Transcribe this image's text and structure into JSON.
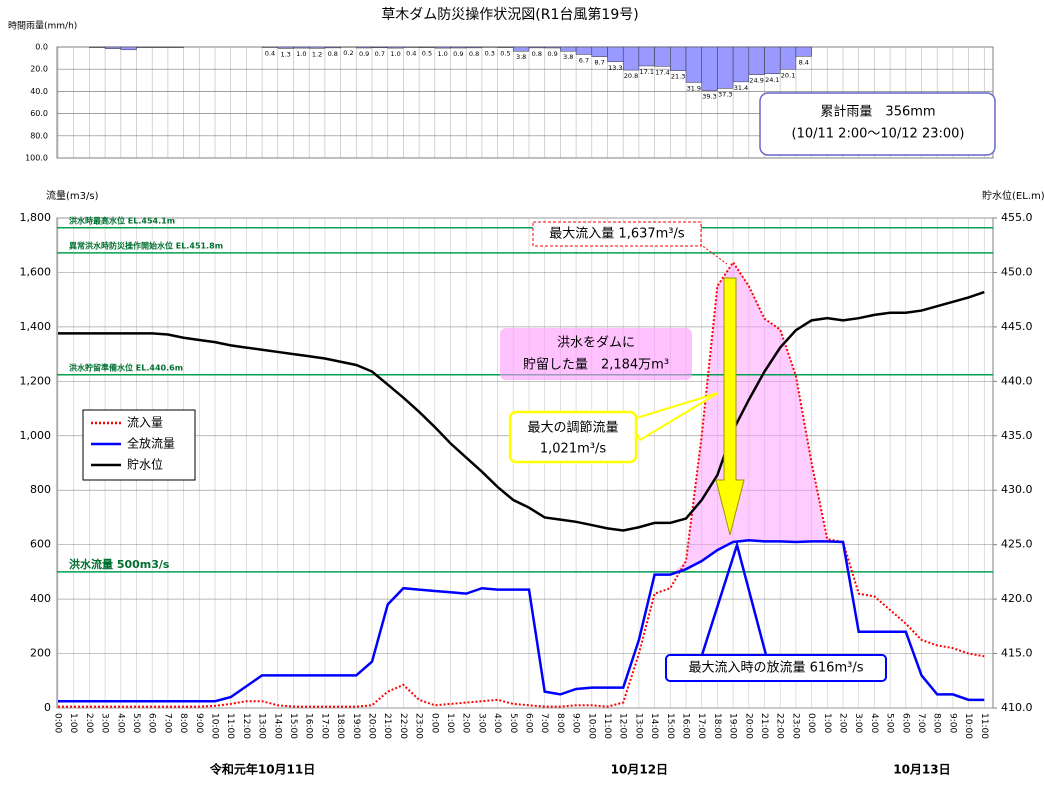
{
  "chart_data": [
    {
      "type": "bar",
      "title": "草木ダム防災操作状況図(R1台風第19号)",
      "ylabel": "時間雨量(mm/h)",
      "inverted": true,
      "grid": true,
      "color": "#9999ff",
      "ylim": [
        0,
        100
      ],
      "yticks": [
        {
          "value": 0,
          "label": "0.0"
        },
        {
          "value": 20,
          "label": "20.0"
        },
        {
          "value": 40,
          "label": "40.0"
        },
        {
          "value": 60,
          "label": "60.0"
        },
        {
          "value": 80,
          "label": "80.0"
        },
        {
          "value": 100,
          "label": "100.0"
        }
      ],
      "values": [
        null,
        null,
        0.5,
        1.5,
        2.5,
        0.5,
        0.5,
        0.5,
        null,
        null,
        null,
        null,
        null,
        0.4,
        1.3,
        1.0,
        1.2,
        0.8,
        0.2,
        0.9,
        0.7,
        1.0,
        0.4,
        0.5,
        1.0,
        0.9,
        0.8,
        0.3,
        0.5,
        3.8,
        0.8,
        0.9,
        3.8,
        6.7,
        8.7,
        13.3,
        20.8,
        17.1,
        17.4,
        21.3,
        31.9,
        39.3,
        37.3,
        31.4,
        24.9,
        24.1,
        20.1,
        8.4,
        null,
        null,
        null,
        null,
        null,
        null,
        null,
        null,
        null,
        null,
        null,
        null
      ],
      "value_labels": [
        null,
        null,
        null,
        null,
        null,
        null,
        null,
        null,
        null,
        null,
        null,
        null,
        null,
        "0.4",
        "1.3",
        "1.0",
        "1.2",
        "0.8",
        "0.2",
        "0.9",
        "0.7",
        "1.0",
        "0.4",
        "0.5",
        "1.0",
        "0.9",
        "0.8",
        "0.3",
        "0.5",
        "3.8",
        "0.8",
        "0.9",
        "3.8",
        "6.7",
        "8.7",
        "13.3",
        "20.8",
        "17.1",
        "17.4",
        "21.3",
        "31.9",
        "39.3",
        "37.3",
        "31.4",
        "24.9",
        "24.1",
        "20.1",
        "8.4",
        null,
        null,
        null,
        null,
        null,
        null,
        null,
        null,
        null,
        null,
        null,
        null
      ],
      "annotation": [
        "累計雨量　356mm",
        "(10/11 2:00～10/12 23:00)"
      ]
    },
    {
      "type": "line",
      "ylabel": "流量(m3/s)",
      "y2label": "貯水位(EL.m)",
      "grid": true,
      "legend": "left",
      "categories": [
        "0:00",
        "1:00",
        "2:00",
        "3:00",
        "4:00",
        "5:00",
        "6:00",
        "7:00",
        "8:00",
        "9:00",
        "10:00",
        "11:00",
        "12:00",
        "13:00",
        "14:00",
        "15:00",
        "16:00",
        "17:00",
        "18:00",
        "19:00",
        "20:00",
        "21:00",
        "22:00",
        "23:00",
        "0:00",
        "1:00",
        "2:00",
        "3:00",
        "4:00",
        "5:00",
        "6:00",
        "7:00",
        "8:00",
        "9:00",
        "10:00",
        "11:00",
        "12:00",
        "13:00",
        "14:00",
        "15:00",
        "16:00",
        "17:00",
        "18:00",
        "19:00",
        "20:00",
        "21:00",
        "22:00",
        "23:00",
        "0:00",
        "1:00",
        "2:00",
        "3:00",
        "4:00",
        "5:00",
        "6:00",
        "7:00",
        "8:00",
        "9:00",
        "10:00",
        "11:00"
      ],
      "date_labels": [
        "令和元年10月11日",
        "10月12日",
        "10月13日"
      ],
      "ylim": [
        0,
        1800
      ],
      "yticks": [
        0,
        200,
        400,
        600,
        800,
        {
          "value": 1000,
          "label": "1,000"
        },
        {
          "value": 1200,
          "label": "1,200"
        },
        {
          "value": 1400,
          "label": "1,400"
        },
        {
          "value": 1600,
          "label": "1,600"
        },
        {
          "value": 1800,
          "label": "1,800"
        }
      ],
      "y2lim": [
        410,
        455
      ],
      "y2ticks": [
        {
          "value": 410,
          "label": "410.0"
        },
        {
          "value": 415,
          "label": "415.0"
        },
        {
          "value": 420,
          "label": "420.0"
        },
        {
          "value": 425,
          "label": "425.0"
        },
        {
          "value": 430,
          "label": "430.0"
        },
        {
          "value": 435,
          "label": "435.0"
        },
        {
          "value": 440,
          "label": "440.0"
        },
        {
          "value": 445,
          "label": "445.0"
        },
        {
          "value": 450,
          "label": "450.0"
        },
        {
          "value": 455,
          "label": "455.0"
        }
      ],
      "ref_lines": [
        {
          "label": "洪水時最高水位 EL.454.1m",
          "value": 454.1,
          "axis": "y2"
        },
        {
          "label": "異常洪水時防災操作開始水位 EL.451.8m",
          "value": 451.8,
          "axis": "y2"
        },
        {
          "label": "洪水貯留準備水位 EL.440.6m",
          "value": 440.6,
          "axis": "y2"
        },
        {
          "label": "洪水流量 500m3/s",
          "value": 500,
          "axis": "y"
        }
      ],
      "series": [
        {
          "name": "流入量",
          "color": "#ff0000",
          "dashed": true,
          "values": [
            5,
            5,
            5,
            5,
            5,
            5,
            5,
            5,
            5,
            5,
            8,
            15,
            25,
            25,
            10,
            5,
            5,
            5,
            5,
            5,
            10,
            60,
            85,
            30,
            10,
            15,
            20,
            25,
            30,
            15,
            10,
            5,
            5,
            10,
            10,
            5,
            20,
            200,
            420,
            440,
            540,
            1000,
            1550,
            1637,
            1550,
            1430,
            1390,
            1220,
            900,
            620,
            610,
            420,
            410,
            360,
            310,
            250,
            230,
            220,
            200,
            190
          ]
        },
        {
          "name": "全放流量",
          "color": "#0000ff",
          "values": [
            25,
            25,
            25,
            25,
            25,
            25,
            25,
            25,
            25,
            25,
            25,
            40,
            80,
            120,
            120,
            120,
            120,
            120,
            120,
            120,
            170,
            380,
            440,
            435,
            430,
            425,
            420,
            440,
            435,
            435,
            435,
            60,
            50,
            70,
            75,
            75,
            75,
            250,
            490,
            490,
            510,
            540,
            580,
            610,
            616,
            612,
            612,
            610,
            612,
            612,
            610,
            280,
            280,
            280,
            280,
            120,
            50,
            50,
            30,
            30
          ]
        },
        {
          "name": "貯水位",
          "color": "#000000",
          "axis": "y2",
          "values": [
            444.4,
            444.4,
            444.4,
            444.4,
            444.4,
            444.4,
            444.4,
            444.3,
            444.0,
            443.8,
            443.6,
            443.3,
            443.1,
            442.9,
            442.7,
            442.5,
            442.3,
            442.1,
            441.8,
            441.5,
            440.9,
            439.7,
            438.5,
            437.2,
            435.8,
            434.3,
            433.0,
            431.7,
            430.3,
            429.1,
            428.4,
            427.5,
            427.3,
            427.1,
            426.8,
            426.5,
            426.3,
            426.6,
            427.0,
            427.0,
            427.4,
            429.1,
            431.4,
            435.5,
            438.3,
            440.9,
            443.1,
            444.7,
            445.6,
            445.8,
            445.6,
            445.8,
            446.1,
            446.3,
            446.3,
            446.5,
            446.9,
            447.3,
            447.7,
            448.2
          ]
        }
      ],
      "annotations": [
        "最大流入量 1,637m³/s",
        "洪水をダムに",
        "貯留した量　2,184万m³",
        "最大の調節流量",
        "1,021m³/s",
        "最大流入時の放流量 616m³/s"
      ]
    }
  ]
}
